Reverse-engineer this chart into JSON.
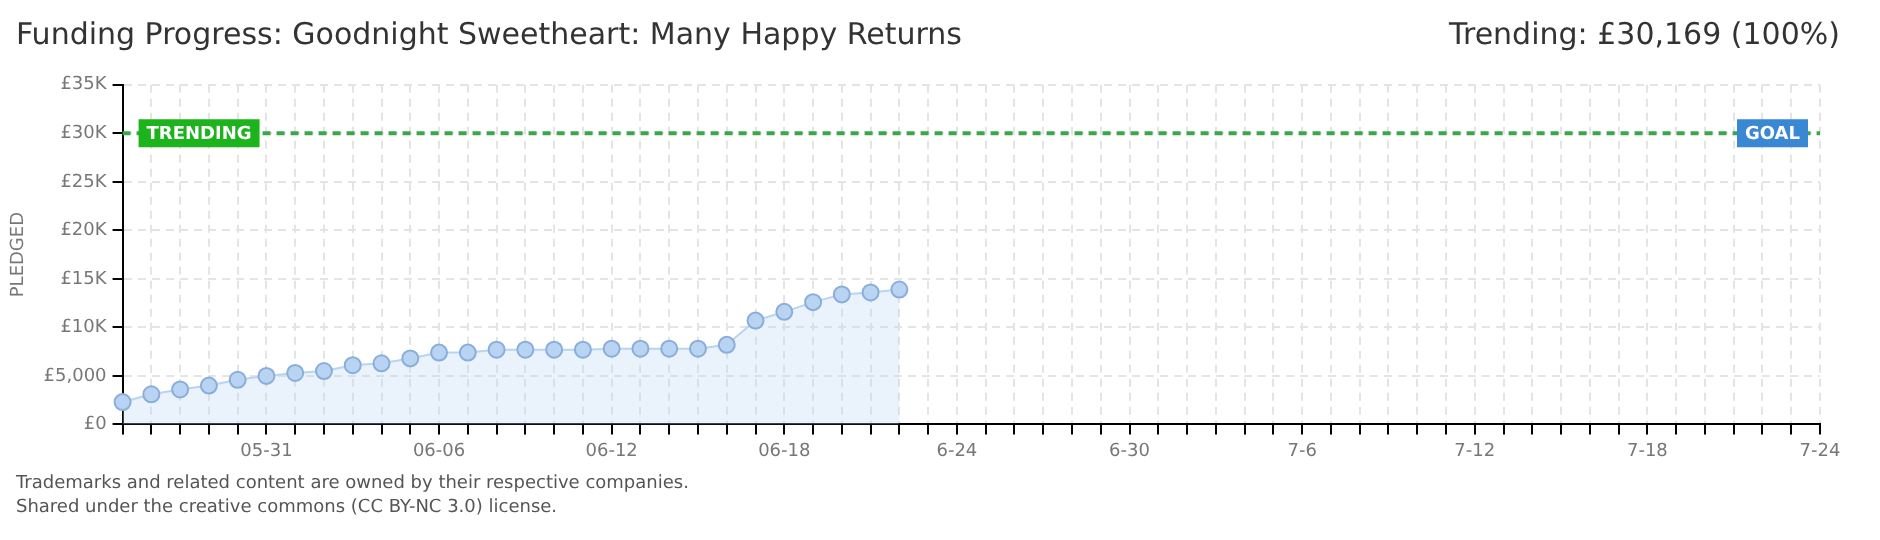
{
  "chart_data": {
    "type": "area",
    "title": "Funding Progress: Goodnight Sweetheart: Many Happy Returns",
    "ylabel": "PLEDGED",
    "annotations": [
      "Trending: £30,169 (100%)",
      {
        "text": "TRENDING",
        "y": 30000
      },
      "Trademarks and related content are owned by their respective companies.",
      "Shared under the creative commons (CC BY-NC 3.0) license."
    ],
    "categories": [
      null,
      null,
      null,
      null,
      null,
      "05-31",
      null,
      null,
      null,
      null,
      null,
      "06-06",
      null,
      null,
      null,
      null,
      null,
      "06-12",
      null,
      null,
      null,
      null,
      null,
      "06-18",
      null,
      null,
      null,
      null,
      null,
      "6-24",
      null,
      null,
      null,
      null,
      null,
      "6-30",
      null,
      null,
      null,
      null,
      null,
      "7-6",
      null,
      null,
      null,
      null,
      null,
      "7-12",
      null,
      null,
      null,
      null,
      null,
      "7-18",
      null,
      null,
      null,
      null,
      null,
      "7-24"
    ],
    "series": [
      {
        "color": "#b8d4f2",
        "values": [
          2300,
          3100,
          3600,
          4000,
          4600,
          5000,
          5300,
          5500,
          6100,
          6300,
          6800,
          7400,
          7400,
          7700,
          7700,
          7700,
          7700,
          7800,
          7800,
          7800,
          7800,
          8200,
          10700,
          11600,
          12600,
          13400,
          13600,
          13900,
          null,
          null,
          null,
          null,
          null,
          null,
          null,
          null,
          null,
          null,
          null,
          null,
          null,
          null,
          null,
          null,
          null,
          null,
          null,
          null,
          null,
          null,
          null,
          null,
          null,
          null,
          null,
          null,
          null,
          null,
          null,
          null
        ]
      }
    ],
    "ylim": [
      0,
      35000
    ],
    "yticks": [
      {
        "value": 0,
        "label": "£0"
      },
      {
        "value": 5000,
        "label": "£5,000"
      },
      {
        "value": 10000,
        "label": "£10K"
      },
      {
        "value": 15000,
        "label": "£15K"
      },
      {
        "value": 20000,
        "label": "£20K"
      },
      {
        "value": 25000,
        "label": "£25K"
      },
      {
        "value": 30000,
        "label": "£30K"
      },
      {
        "value": 35000,
        "label": "£35K"
      }
    ],
    "ref_lines": [
      {
        "axis": "y",
        "value": 30000,
        "label": "GOAL",
        "color": "#3aa84a"
      }
    ],
    "grid": true,
    "legend": false,
    "marker": "circle",
    "line_style": "solid"
  }
}
